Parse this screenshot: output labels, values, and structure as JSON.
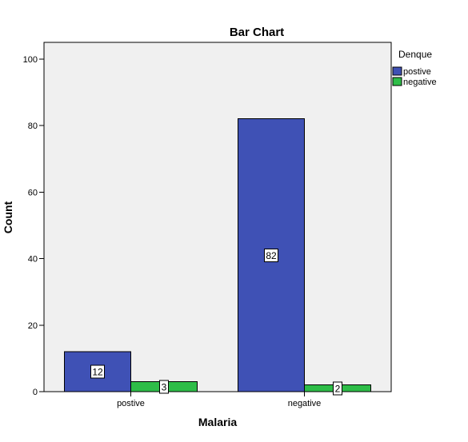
{
  "chart_data": {
    "type": "bar",
    "title": "Bar Chart",
    "xlabel": "Malaria",
    "ylabel": "Count",
    "categories": [
      "postive",
      "negative"
    ],
    "series": [
      {
        "name": "postive",
        "values": [
          12,
          82
        ],
        "color": "#3F51B5"
      },
      {
        "name": "negative",
        "values": [
          3,
          2
        ],
        "color": "#2EBD48"
      }
    ],
    "legend": {
      "title": "Denque",
      "placement": "right"
    },
    "ylim": [
      0,
      100
    ],
    "yticks": [
      0,
      20,
      40,
      60,
      80,
      100
    ],
    "grid": false,
    "data_labels": true,
    "colors": {
      "plot_background": "#F0F0F0",
      "page_background": "#FFFFFF"
    }
  }
}
